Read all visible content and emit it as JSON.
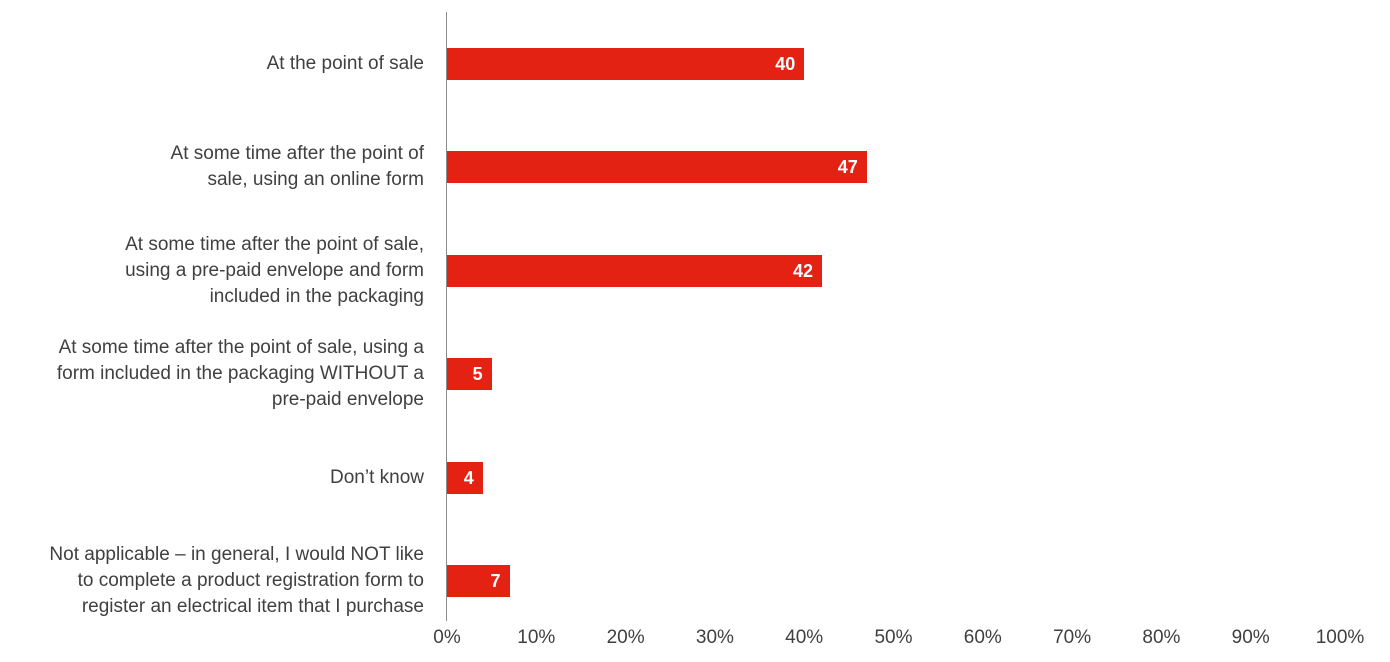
{
  "chart_data": {
    "type": "bar",
    "orientation": "horizontal",
    "categories": [
      "At the point of sale",
      "At some time after the point of sale, using an online form",
      "At some time after the point of sale, using a pre-paid envelope and form included in the packaging",
      "At some time after the point of sale, using a form included in the packaging WITHOUT a pre-paid envelope",
      "Don’t know",
      "Not applicable – in general, I would NOT like to complete a product registration form to register an electrical item that I purchase"
    ],
    "category_lines": [
      [
        "At the point of sale"
      ],
      [
        "At some time after the point of",
        "sale, using an online form"
      ],
      [
        "At some time after the point of sale,",
        "using a pre-paid envelope and form",
        "included in the packaging"
      ],
      [
        "At some time after the point of sale, using a",
        "form included in the packaging WITHOUT a",
        "pre-paid envelope"
      ],
      [
        "Don’t know"
      ],
      [
        "Not applicable – in general, I would NOT like",
        "to complete a product registration form to",
        "register an electrical item that I purchase"
      ]
    ],
    "values": [
      40,
      47,
      42,
      5,
      4,
      7
    ],
    "value_labels": [
      "40",
      "47",
      "42",
      "5",
      "4",
      "7"
    ],
    "x_ticks": [
      "0%",
      "10%",
      "20%",
      "30%",
      "40%",
      "50%",
      "60%",
      "70%",
      "80%",
      "90%",
      "100%"
    ],
    "xlim": [
      0,
      100
    ],
    "grid": false,
    "legend": "none",
    "bar_color": "#e32213",
    "title": "",
    "xlabel": "",
    "ylabel": ""
  }
}
